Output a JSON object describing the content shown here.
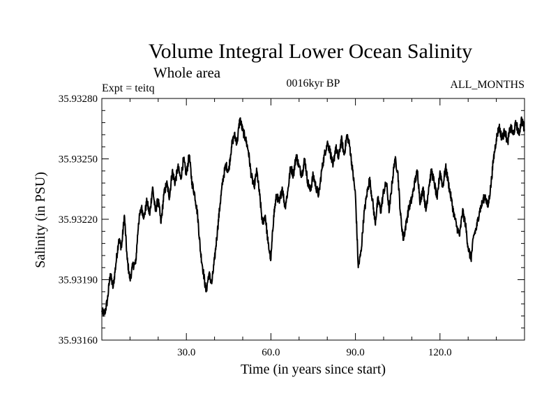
{
  "chart_data": {
    "type": "line",
    "title": "Volume Integral Lower Ocean Salinity",
    "subtitle": "Whole area",
    "left_label": "Expt = teitq",
    "center_label": "0016kyr BP",
    "right_label": "ALL_MONTHS",
    "xlabel": "Time (in years since start)",
    "ylabel": "Salinity (in PSU)",
    "xlim": [
      0,
      150
    ],
    "ylim": [
      35.9316,
      35.9328
    ],
    "xticks": [
      30,
      60,
      90,
      120
    ],
    "xtick_labels": [
      "30.0",
      "60.0",
      "90.0",
      "120.0"
    ],
    "yticks": [
      35.9316,
      35.9319,
      35.9322,
      35.9325,
      35.9328
    ],
    "ytick_labels": [
      "35.93160",
      "35.93190",
      "35.93220",
      "35.93250",
      "35.93280"
    ],
    "line_color": "#000000",
    "series": [
      {
        "name": "Salinity",
        "anchors": [
          [
            0,
            35.93174
          ],
          [
            1,
            35.93173
          ],
          [
            2,
            35.9318
          ],
          [
            3,
            35.93193
          ],
          [
            4,
            35.93186
          ],
          [
            5,
            35.93198
          ],
          [
            6,
            35.9321
          ],
          [
            7,
            35.93206
          ],
          [
            8,
            35.93222
          ],
          [
            9,
            35.932
          ],
          [
            10,
            35.9319
          ],
          [
            11,
            35.93197
          ],
          [
            12,
            35.93198
          ],
          [
            13,
            35.93218
          ],
          [
            14,
            35.93226
          ],
          [
            15,
            35.93221
          ],
          [
            16,
            35.93229
          ],
          [
            17,
            35.93222
          ],
          [
            18,
            35.93236
          ],
          [
            19,
            35.93224
          ],
          [
            20,
            35.9323
          ],
          [
            21,
            35.93218
          ],
          [
            22,
            35.93232
          ],
          [
            23,
            35.93238
          ],
          [
            24,
            35.93231
          ],
          [
            25,
            35.93244
          ],
          [
            26,
            35.93238
          ],
          [
            27,
            35.93246
          ],
          [
            28,
            35.9324
          ],
          [
            29,
            35.9325
          ],
          [
            30,
            35.93242
          ],
          [
            31,
            35.93252
          ],
          [
            32,
            35.93238
          ],
          [
            33,
            35.93232
          ],
          [
            34,
            35.93222
          ],
          [
            35,
            35.93204
          ],
          [
            36,
            35.93194
          ],
          [
            37,
            35.93184
          ],
          [
            38,
            35.93193
          ],
          [
            39,
            35.93188
          ],
          [
            40,
            35.932
          ],
          [
            41,
            35.93214
          ],
          [
            42,
            35.93228
          ],
          [
            43,
            35.9324
          ],
          [
            44,
            35.93247
          ],
          [
            45,
            35.93244
          ],
          [
            46,
            35.93256
          ],
          [
            47,
            35.93262
          ],
          [
            48,
            35.93258
          ],
          [
            49,
            35.9327
          ],
          [
            50,
            35.93264
          ],
          [
            51,
            35.9326
          ],
          [
            52,
            35.93254
          ],
          [
            53,
            35.93242
          ],
          [
            54,
            35.93236
          ],
          [
            55,
            35.93244
          ],
          [
            56,
            35.93232
          ],
          [
            57,
            35.93218
          ],
          [
            58,
            35.93222
          ],
          [
            59,
            35.93208
          ],
          [
            60,
            35.932
          ],
          [
            61,
            35.93222
          ],
          [
            62,
            35.93232
          ],
          [
            63,
            35.93228
          ],
          [
            64,
            35.93236
          ],
          [
            65,
            35.93226
          ],
          [
            66,
            35.93234
          ],
          [
            67,
            35.93246
          ],
          [
            68,
            35.93242
          ],
          [
            69,
            35.93252
          ],
          [
            70,
            35.93246
          ],
          [
            71,
            35.93242
          ],
          [
            72,
            35.9325
          ],
          [
            73,
            35.93239
          ],
          [
            74,
            35.93234
          ],
          [
            75,
            35.93242
          ],
          [
            76,
            35.93236
          ],
          [
            77,
            35.93232
          ],
          [
            78,
            35.93244
          ],
          [
            79,
            35.93252
          ],
          [
            80,
            35.93258
          ],
          [
            81,
            35.93254
          ],
          [
            82,
            35.93246
          ],
          [
            83,
            35.93256
          ],
          [
            84,
            35.9325
          ],
          [
            85,
            35.9326
          ],
          [
            86,
            35.93252
          ],
          [
            87,
            35.93262
          ],
          [
            88,
            35.93256
          ],
          [
            89,
            35.93244
          ],
          [
            90,
            35.93232
          ],
          [
            91,
            35.93196
          ],
          [
            92,
            35.93204
          ],
          [
            93,
            35.93222
          ],
          [
            94,
            35.93232
          ],
          [
            95,
            35.9324
          ],
          [
            96,
            35.9323
          ],
          [
            97,
            35.93218
          ],
          [
            98,
            35.9323
          ],
          [
            99,
            35.93224
          ],
          [
            100,
            35.93234
          ],
          [
            101,
            35.93238
          ],
          [
            102,
            35.93224
          ],
          [
            103,
            35.93238
          ],
          [
            104,
            35.9325
          ],
          [
            105,
            35.93244
          ],
          [
            106,
            35.93222
          ],
          [
            107,
            35.9321
          ],
          [
            108,
            35.93218
          ],
          [
            109,
            35.93226
          ],
          [
            110,
            35.9323
          ],
          [
            111,
            35.93238
          ],
          [
            112,
            35.93244
          ],
          [
            113,
            35.93228
          ],
          [
            114,
            35.93236
          ],
          [
            115,
            35.93224
          ],
          [
            116,
            35.93236
          ],
          [
            117,
            35.93244
          ],
          [
            118,
            35.93238
          ],
          [
            119,
            35.9323
          ],
          [
            120,
            35.93244
          ],
          [
            121,
            35.93236
          ],
          [
            122,
            35.93246
          ],
          [
            123,
            35.93238
          ],
          [
            124,
            35.9323
          ],
          [
            125,
            35.93222
          ],
          [
            126,
            35.93216
          ],
          [
            127,
            35.93212
          ],
          [
            128,
            35.93224
          ],
          [
            129,
            35.93218
          ],
          [
            130,
            35.93206
          ],
          [
            131,
            35.932
          ],
          [
            132,
            35.93212
          ],
          [
            133,
            35.93216
          ],
          [
            134,
            35.93224
          ],
          [
            135,
            35.93228
          ],
          [
            136,
            35.93232
          ],
          [
            137,
            35.93226
          ],
          [
            138,
            35.93236
          ],
          [
            139,
            35.9325
          ],
          [
            140,
            35.9326
          ],
          [
            141,
            35.93266
          ],
          [
            142,
            35.9326
          ],
          [
            143,
            35.93264
          ],
          [
            144,
            35.93258
          ],
          [
            145,
            35.93266
          ],
          [
            146,
            35.93262
          ],
          [
            147,
            35.93268
          ],
          [
            148,
            35.93262
          ],
          [
            149,
            35.9327
          ],
          [
            150,
            35.93264
          ]
        ]
      }
    ]
  }
}
